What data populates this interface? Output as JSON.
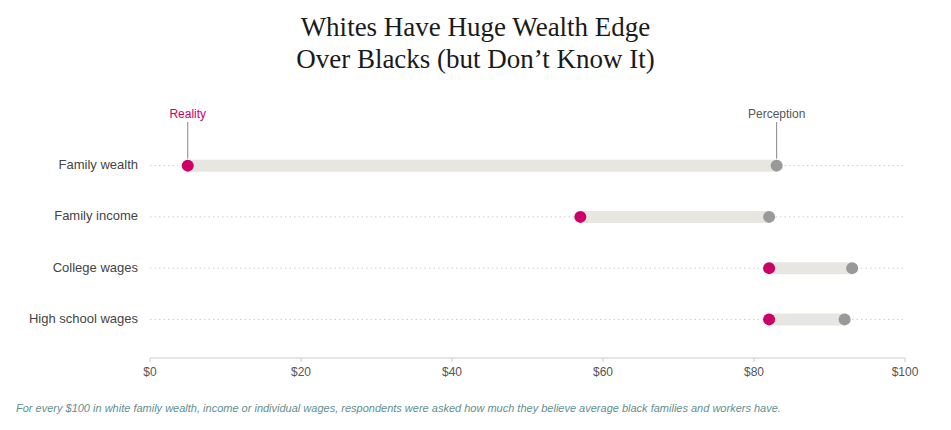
{
  "chart_data": {
    "type": "dumbbell",
    "title": "Whites Have Huge Wealth Edge\nOver Blacks (but Don’t Know It)",
    "categories": [
      "Family wealth",
      "Family income",
      "College wages",
      "High school wages"
    ],
    "series": [
      {
        "name": "Reality",
        "color": "#cc0066",
        "values": [
          5,
          57,
          82,
          82
        ]
      },
      {
        "name": "Perception",
        "color": "#999999",
        "values": [
          83,
          82,
          93,
          92
        ]
      }
    ],
    "color": "#e8e6e0",
    "orientation": "horizontal",
    "xlim": [
      0,
      100
    ],
    "xticks": [
      {
        "value": 0,
        "label": "$0"
      },
      {
        "value": 20,
        "label": "$20"
      },
      {
        "value": 40,
        "label": "$40"
      },
      {
        "value": 60,
        "label": "$60"
      },
      {
        "value": 80,
        "label": "$80"
      },
      {
        "value": 100,
        "label": "$100"
      }
    ],
    "grid": true,
    "annotations": [
      "For every $100 in white family wealth, income or individual wages, respondents were asked how much they believe average black families and workers have."
    ]
  }
}
